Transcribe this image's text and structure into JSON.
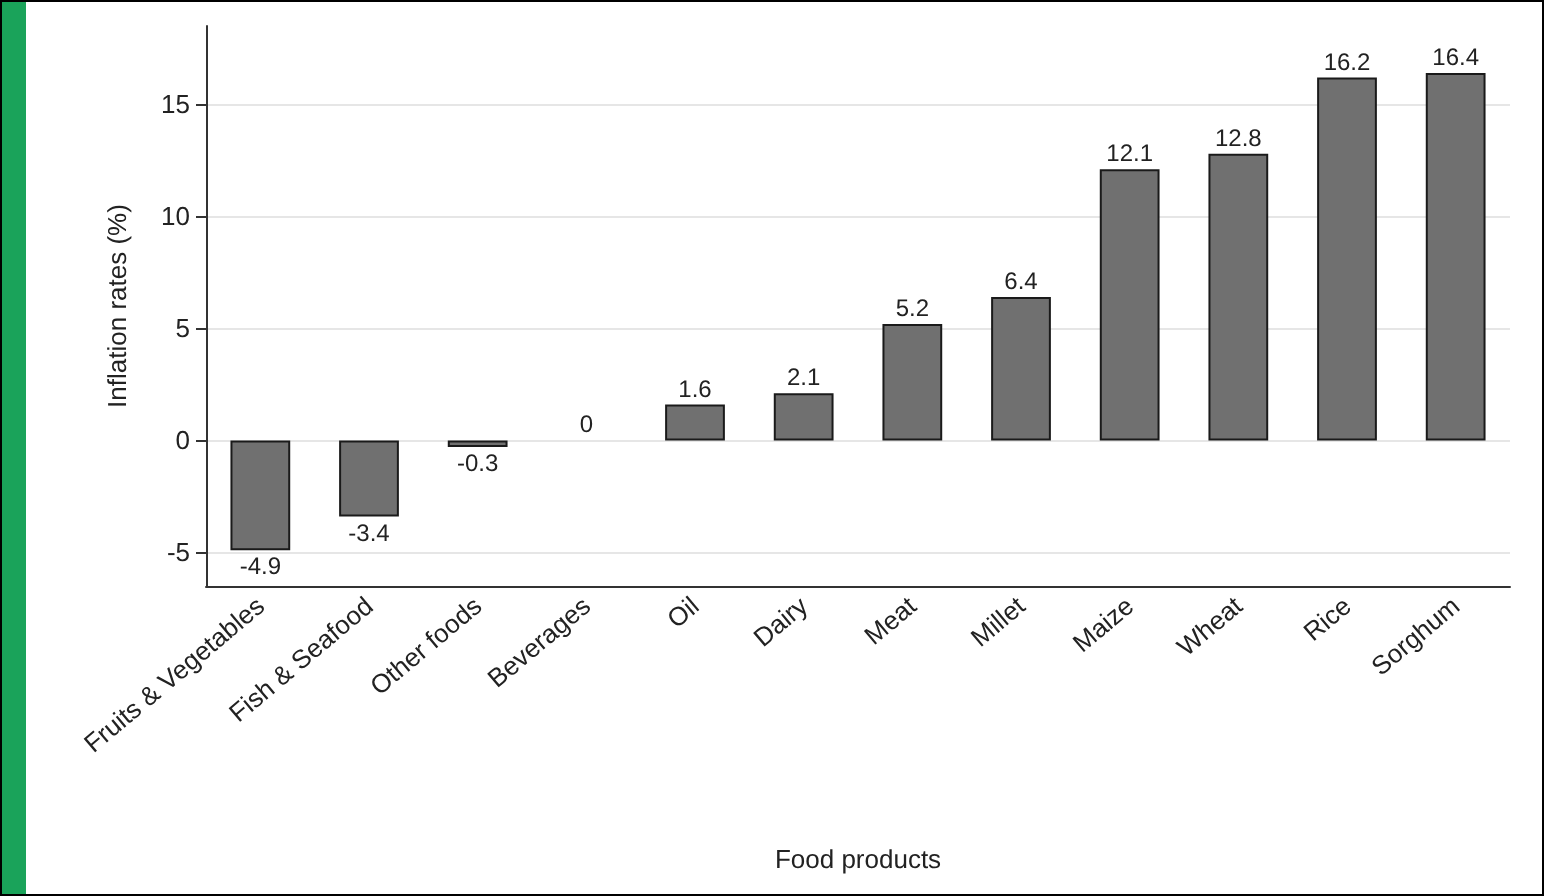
{
  "chart_data": {
    "type": "bar",
    "xlabel": "Food products",
    "ylabel": "Inflation rates (%)",
    "categories": [
      "Fruits & Vegetables",
      "Fish & Seafood",
      "Other foods",
      "Beverages",
      "Oil",
      "Dairy",
      "Meat",
      "Millet",
      "Maize",
      "Wheat",
      "Rice",
      "Sorghum"
    ],
    "values": [
      -4.9,
      -3.4,
      -0.3,
      0,
      1.6,
      2.1,
      5.2,
      6.4,
      12.1,
      12.8,
      16.2,
      16.4
    ],
    "color": "#707070",
    "ylim": [
      -6.5,
      18.5
    ],
    "yticks": [
      -5,
      0,
      5,
      10,
      15
    ],
    "grid": "y",
    "data_labels": true
  }
}
